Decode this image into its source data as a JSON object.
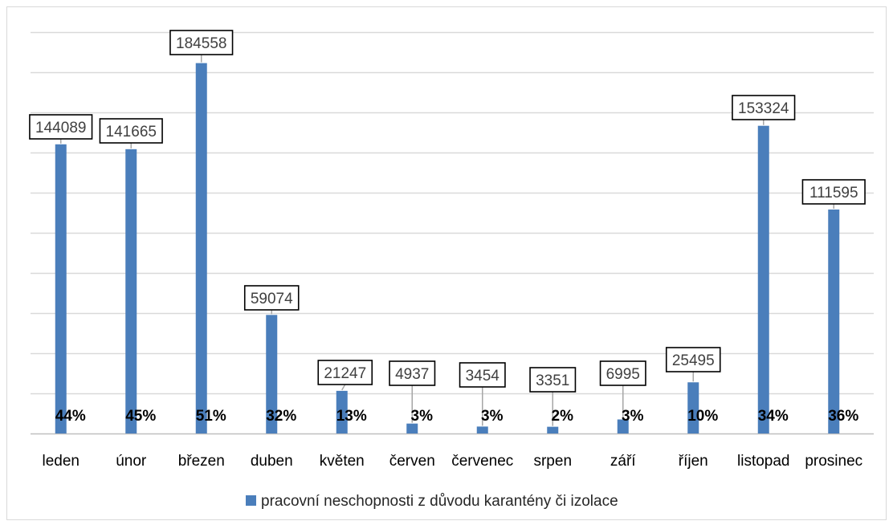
{
  "chart_data": {
    "type": "bar",
    "categories": [
      "leden",
      "únor",
      "březen",
      "duben",
      "květen",
      "červen",
      "červenec",
      "srpen",
      "září",
      "říjen",
      "listopad",
      "prosinec"
    ],
    "series": [
      {
        "name": "pracovní neschopnosti z důvodu karantény či izolace",
        "color": "#4a7ebb",
        "values": [
          144089,
          141665,
          184558,
          59074,
          21247,
          4937,
          3454,
          3351,
          6995,
          25495,
          153324,
          111595
        ],
        "value_labels": [
          "144089",
          "141665",
          "184558",
          "59074",
          "21247",
          "4937",
          "3454",
          "3351",
          "6995",
          "25495",
          "153324",
          "111595"
        ]
      }
    ],
    "percent_labels": [
      "44%",
      "45%",
      "51%",
      "32%",
      "13%",
      "3%",
      "3%",
      "2%",
      "3%",
      "10%",
      "34%",
      "36%"
    ],
    "ylim": [
      0,
      200000
    ],
    "gridlines": true,
    "gridline_step": 20000,
    "y_tick_labels_visible": false,
    "legend_position": "bottom"
  }
}
